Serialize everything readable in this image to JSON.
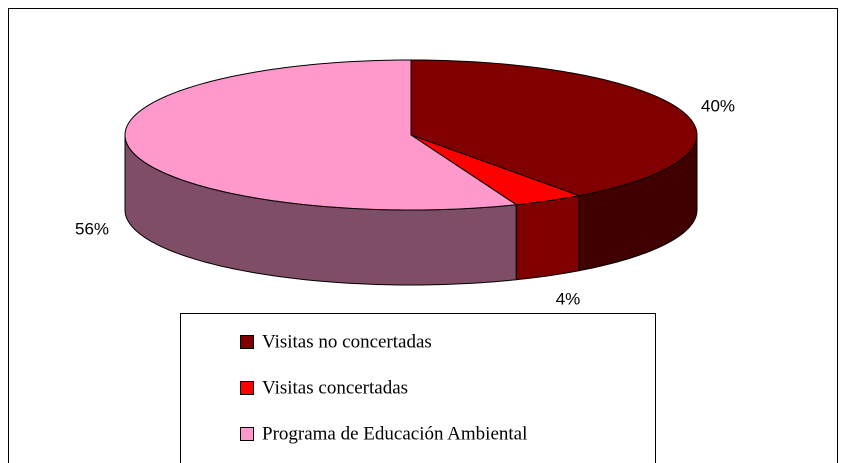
{
  "chart_data": {
    "type": "pie",
    "categories": [
      "Visitas no concertadas",
      "Visitas concertadas",
      "Programa de Educación Ambiental"
    ],
    "values": [
      40,
      4,
      56
    ],
    "value_labels": [
      "40%",
      "4%",
      "56%"
    ],
    "colors": [
      "#800000",
      "#ff0000",
      "#ff99cc"
    ],
    "legend": "bottom"
  }
}
